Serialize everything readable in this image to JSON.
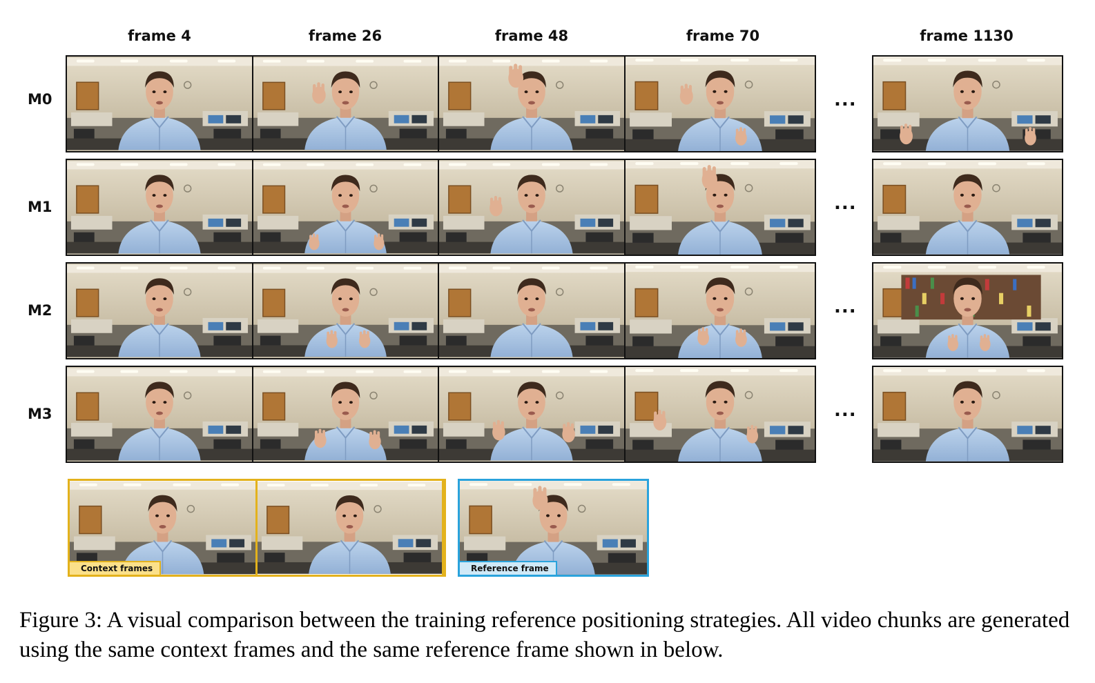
{
  "columns": [
    "frame 4",
    "frame 26",
    "frame 48",
    "frame 70",
    "frame 1130"
  ],
  "rows": [
    {
      "label": "M0",
      "poses": [
        "talk",
        "wave",
        "head",
        "wave-gesture"
      ],
      "last_pose": "spread"
    },
    {
      "label": "M1",
      "poses": [
        "talk",
        "open-hands",
        "wave",
        "head"
      ],
      "last_pose": "talk"
    },
    {
      "label": "M2",
      "poses": [
        "talk",
        "gesture",
        "talk",
        "gesture"
      ],
      "last_pose": "gesture-bookshelf"
    },
    {
      "label": "M3",
      "poses": [
        "talk",
        "gesture",
        "wide-gesture",
        "wave-gesture"
      ],
      "last_pose": "talk"
    }
  ],
  "ellipsis": "...",
  "legend": {
    "context_label": "Context frames",
    "reference_label": "Reference frame"
  },
  "colors": {
    "context_border": "#e3b21c",
    "reference_border": "#2aa3dc",
    "wall": "#cfc6b1",
    "shirt": "#a9c4e2"
  },
  "caption": "Figure 3: A visual comparison between the training reference positioning strategies. All video chunks are generated using the same context frames and the same reference frame shown in below."
}
